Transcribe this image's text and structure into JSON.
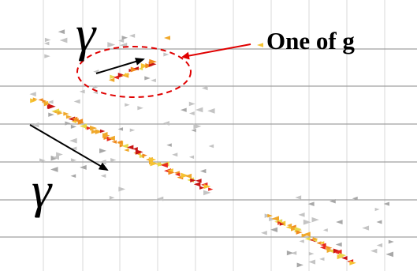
{
  "annotations": [
    {
      "text": "γ"
    },
    {
      "text": "γ"
    },
    {
      "text": "One of g"
    }
  ]
}
